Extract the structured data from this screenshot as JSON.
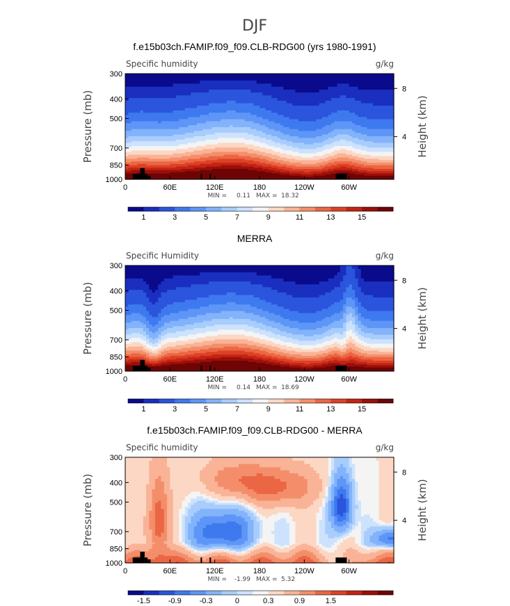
{
  "title": "DJF",
  "colors": {
    "humidity_scale": [
      "#0a0a8c",
      "#1a2fbf",
      "#2a55dc",
      "#3f79ef",
      "#5e96f7",
      "#82b3fb",
      "#a8cdfc",
      "#cde2fd",
      "#f4f4f4",
      "#fcd7c4",
      "#f9b396",
      "#f48e6a",
      "#eb6644",
      "#dd4125",
      "#c32415",
      "#9c0f0a",
      "#6e0505"
    ],
    "diff_scale": [
      "#0a0a8c",
      "#1a2fbf",
      "#2a55dc",
      "#3f79ef",
      "#5e96f7",
      "#82b3fb",
      "#a8cdfc",
      "#cde2fd",
      "#f4f4f4",
      "#fcd7c4",
      "#f9b396",
      "#f48e6a",
      "#eb6644",
      "#dd4125",
      "#c32415",
      "#9c0f0a",
      "#6e0505"
    ],
    "topography": "#000000"
  },
  "chart_data": [
    {
      "type": "heatmap",
      "title": "f.e15b03ch.FAMIP.f09_f09.CLB-RDG00 (yrs 1980-1991)",
      "left_label": "Specific humidity",
      "units": "g/kg",
      "ylabel": "Pressure (mb)",
      "ylabel_right": "Height (km)",
      "x_ticks": [
        "0",
        "60E",
        "120E",
        "180",
        "120W",
        "60W"
      ],
      "y_ticks": [
        "300",
        "400",
        "500",
        "700",
        "850",
        "1000"
      ],
      "y_ticks_right": [
        "8",
        "4"
      ],
      "stats": {
        "min_label": "MIN =",
        "min": "0.11",
        "max_label": "MAX =",
        "max": "18.32"
      },
      "colorbar_labels": [
        "1",
        "3",
        "5",
        "7",
        "9",
        "11",
        "13",
        "15"
      ],
      "levels": [
        0.5,
        1,
        2,
        3,
        4,
        5,
        6,
        7,
        8,
        9,
        10,
        11,
        12,
        13,
        14,
        15
      ]
    },
    {
      "type": "heatmap",
      "title": "MERRA",
      "left_label": "Specific Humidity",
      "units": "g/kg",
      "ylabel": "Pressure (mb)",
      "ylabel_right": "Height (km)",
      "x_ticks": [
        "0",
        "60E",
        "120E",
        "180",
        "120W",
        "60W"
      ],
      "y_ticks": [
        "300",
        "400",
        "500",
        "700",
        "850",
        "1000"
      ],
      "y_ticks_right": [
        "8",
        "4"
      ],
      "stats": {
        "min_label": "MIN =",
        "min": "0.14",
        "max_label": "MAX =",
        "max": "18.69"
      },
      "colorbar_labels": [
        "1",
        "3",
        "5",
        "7",
        "9",
        "11",
        "13",
        "15"
      ],
      "levels": [
        0.5,
        1,
        2,
        3,
        4,
        5,
        6,
        7,
        8,
        9,
        10,
        11,
        12,
        13,
        14,
        15
      ]
    },
    {
      "type": "heatmap",
      "title": "f.e15b03ch.FAMIP.f09_f09.CLB-RDG00 - MERRA",
      "left_label": "Specific humidity",
      "units": "g/kg",
      "ylabel": "Pressure (mb)",
      "ylabel_right": "Height (km)",
      "x_ticks": [
        "0",
        "60E",
        "120E",
        "180",
        "120W",
        "60W"
      ],
      "y_ticks": [
        "300",
        "400",
        "500",
        "700",
        "850",
        "1000"
      ],
      "y_ticks_right": [
        "8",
        "4"
      ],
      "stats": {
        "min_label": "MIN =",
        "min": "-1.99",
        "max_label": "MAX =",
        "max": "5.32"
      },
      "colorbar_labels": [
        "-1.5",
        "-0.9",
        "-0.3",
        "0",
        "0.3",
        "0.9",
        "1.5"
      ],
      "levels": [
        -1.8,
        -1.5,
        -1.2,
        -0.9,
        -0.6,
        -0.3,
        -0.1,
        0,
        0.1,
        0.3,
        0.6,
        0.9,
        1.2,
        1.5,
        1.8
      ]
    }
  ]
}
